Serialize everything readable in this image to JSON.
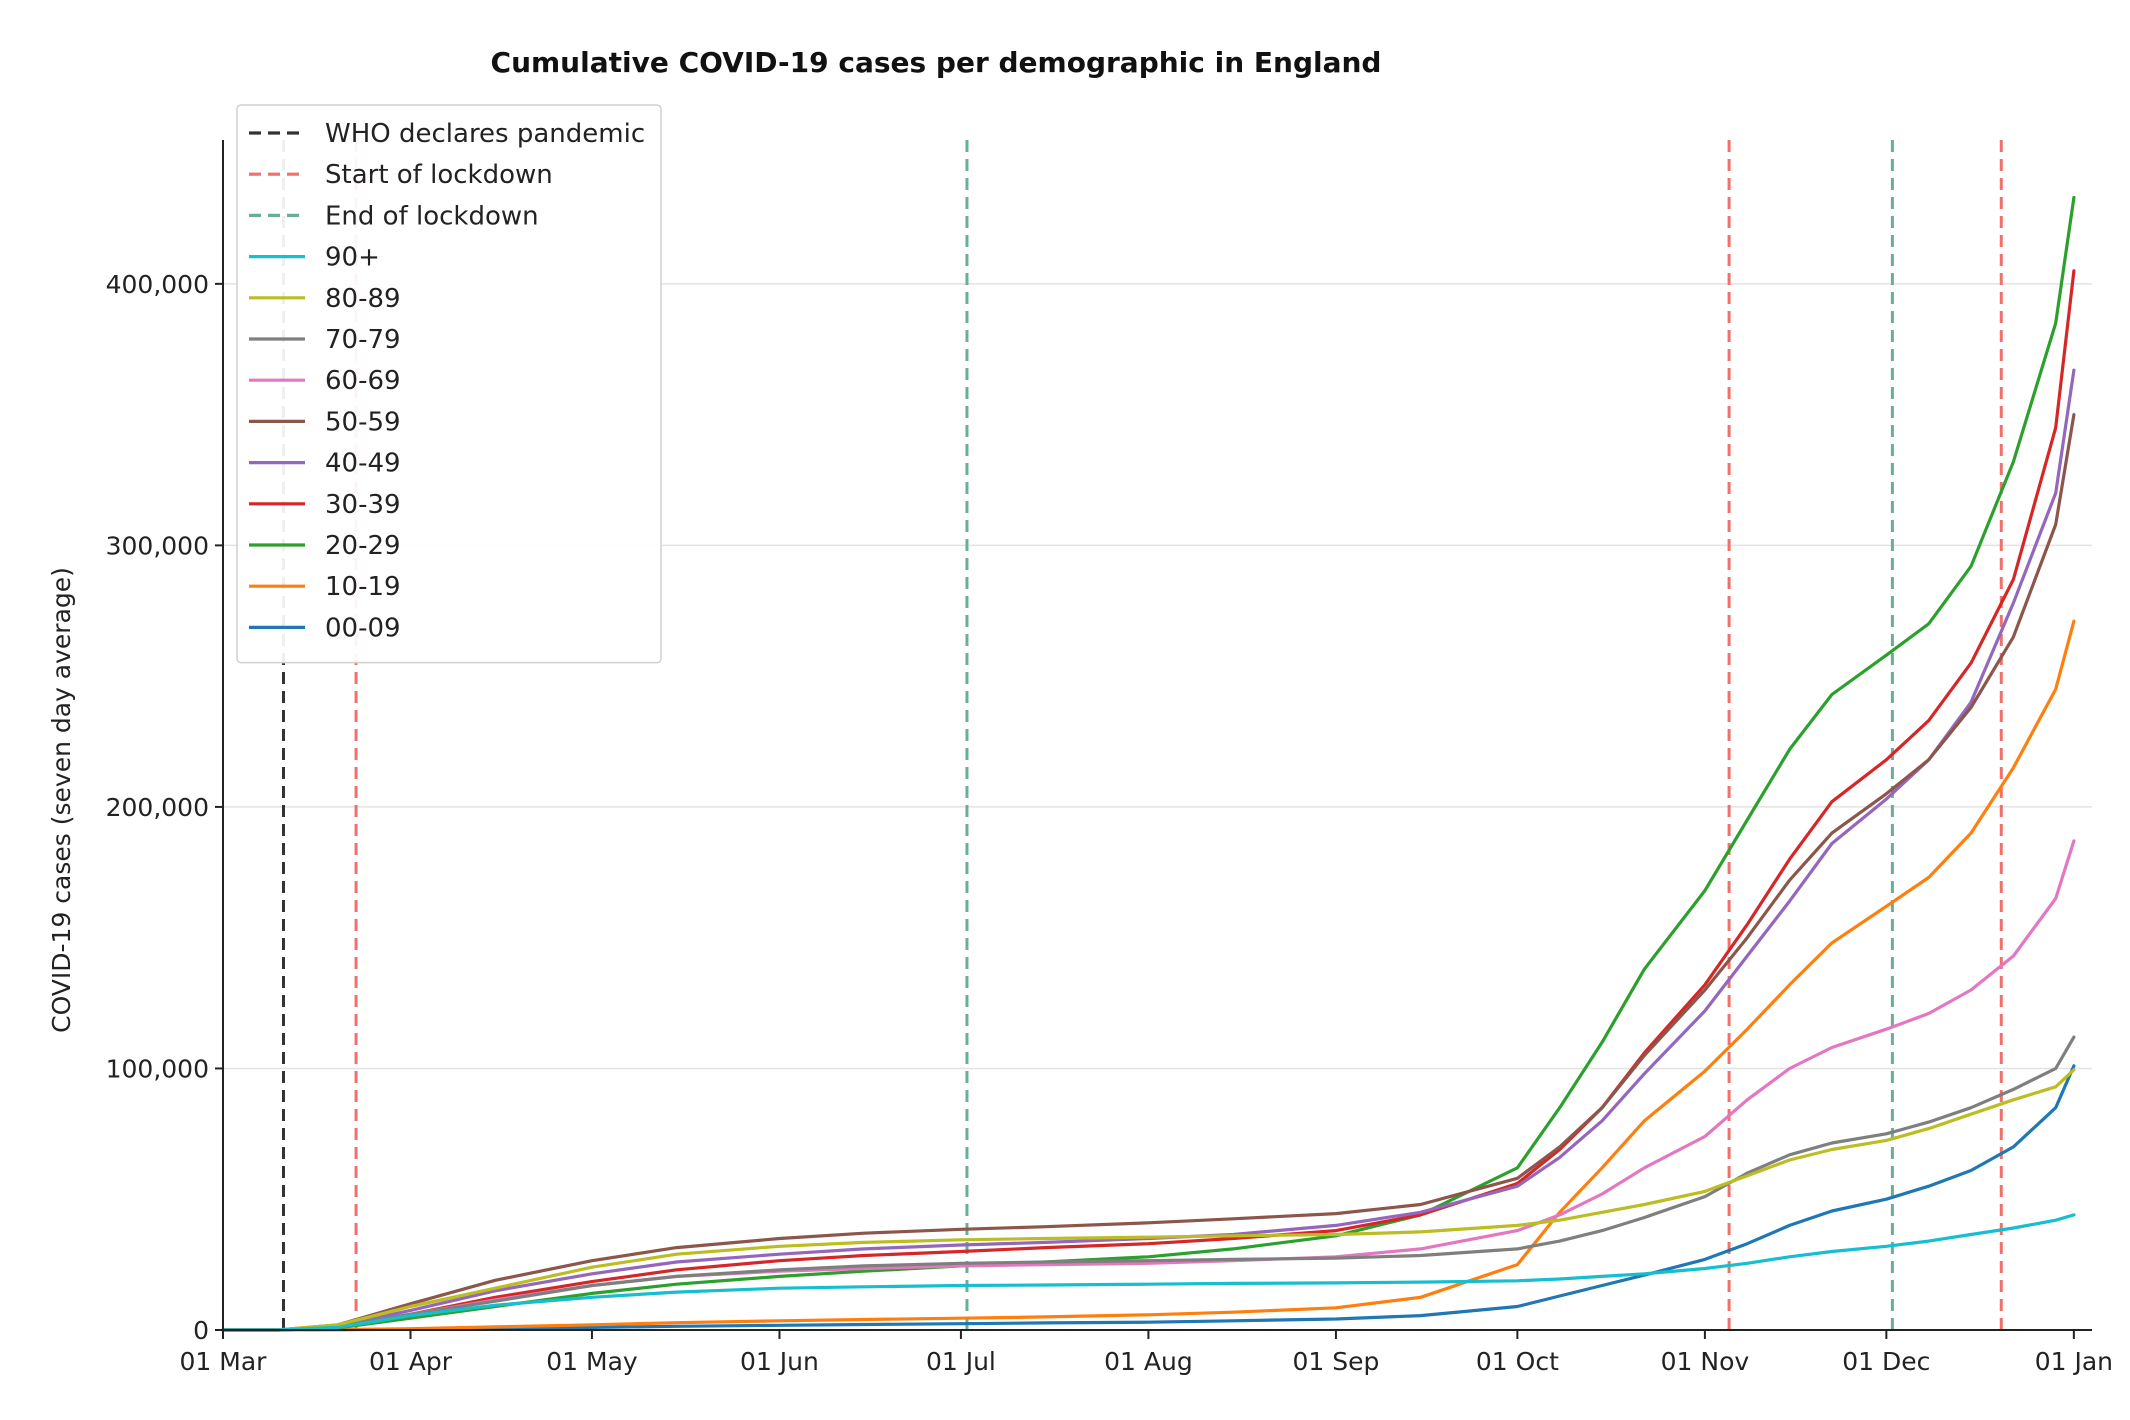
{
  "chart_data": {
    "type": "line",
    "title": "Cumulative COVID-19 cases per demographic in England",
    "xlabel": "",
    "ylabel": "COVID-19 cases (seven day average)",
    "x_range": [
      "2020-03-01",
      "2021-01-04"
    ],
    "ylim": [
      0,
      455000
    ],
    "y_ticks": [
      0,
      100000,
      200000,
      300000,
      400000
    ],
    "y_tick_labels": [
      "0",
      "100,000",
      "200,000",
      "300,000",
      "400,000"
    ],
    "x_ticks": [
      "2020-03-01",
      "2020-04-01",
      "2020-05-01",
      "2020-06-01",
      "2020-07-01",
      "2020-08-01",
      "2020-09-01",
      "2020-10-01",
      "2020-11-01",
      "2020-12-01",
      "2021-01-01"
    ],
    "x_tick_labels": [
      "01 Mar",
      "01 Apr",
      "01 May",
      "01 Jun",
      "01 Jul",
      "01 Aug",
      "01 Sep",
      "01 Oct",
      "01 Nov",
      "01 Dec",
      "01 Jan"
    ],
    "grid": "horizontal",
    "legend_position": "top-left",
    "events": [
      {
        "name": "WHO declares pandemic",
        "date": "2020-03-11",
        "color": "#333333"
      },
      {
        "name": "Start of lockdown",
        "date": "2020-03-23",
        "color": "#f0706b"
      },
      {
        "name": "End of lockdown",
        "date": "2020-07-02",
        "color": "#6aae95"
      },
      {
        "name": "Start of lockdown",
        "date": "2020-11-05",
        "color": "#f0706b"
      },
      {
        "name": "End of lockdown",
        "date": "2020-12-02",
        "color": "#6aae95"
      },
      {
        "name": "Start of lockdown",
        "date": "2020-12-20",
        "color": "#f0706b"
      }
    ],
    "legend": [
      {
        "name": "WHO declares pandemic",
        "color": "#333333",
        "style": "dashed"
      },
      {
        "name": "Start of lockdown",
        "color": "#f0706b",
        "style": "dashed"
      },
      {
        "name": "End of lockdown",
        "color": "#6aae95",
        "style": "dashed"
      },
      {
        "name": "90+",
        "color": "#17becf",
        "style": "solid"
      },
      {
        "name": "80-89",
        "color": "#bcbd22",
        "style": "solid"
      },
      {
        "name": "70-79",
        "color": "#7f7f7f",
        "style": "solid"
      },
      {
        "name": "60-69",
        "color": "#e377c2",
        "style": "solid"
      },
      {
        "name": "50-59",
        "color": "#8c564b",
        "style": "solid"
      },
      {
        "name": "40-49",
        "color": "#9467bd",
        "style": "solid"
      },
      {
        "name": "30-39",
        "color": "#d62728",
        "style": "solid"
      },
      {
        "name": "20-29",
        "color": "#2ca02c",
        "style": "solid"
      },
      {
        "name": "10-19",
        "color": "#ff7f0e",
        "style": "solid"
      },
      {
        "name": "00-09",
        "color": "#1f77b4",
        "style": "solid"
      }
    ],
    "x": [
      "2020-03-01",
      "2020-03-10",
      "2020-03-20",
      "2020-04-01",
      "2020-04-15",
      "2020-05-01",
      "2020-05-15",
      "2020-06-01",
      "2020-06-15",
      "2020-07-01",
      "2020-07-15",
      "2020-08-01",
      "2020-08-15",
      "2020-09-01",
      "2020-09-15",
      "2020-10-01",
      "2020-10-08",
      "2020-10-15",
      "2020-10-22",
      "2020-11-01",
      "2020-11-08",
      "2020-11-15",
      "2020-11-22",
      "2020-12-01",
      "2020-12-08",
      "2020-12-15",
      "2020-12-22",
      "2020-12-29",
      "2021-01-01"
    ],
    "series": [
      {
        "name": "90+",
        "color": "#17becf",
        "values": [
          0,
          0,
          1000,
          5500,
          9500,
          12500,
          14500,
          16000,
          16500,
          17000,
          17200,
          17500,
          17800,
          18000,
          18300,
          18800,
          19500,
          20500,
          21500,
          23500,
          25500,
          28000,
          30000,
          32000,
          34000,
          36500,
          39000,
          42000,
          44000
        ]
      },
      {
        "name": "80-89",
        "color": "#bcbd22",
        "values": [
          0,
          0,
          2000,
          9000,
          16000,
          24000,
          29000,
          32000,
          33500,
          34500,
          35000,
          35500,
          36000,
          36500,
          37500,
          40000,
          42000,
          45000,
          48000,
          53000,
          59000,
          65000,
          69000,
          72500,
          77000,
          82500,
          88000,
          93000,
          99500
        ]
      },
      {
        "name": "70-79",
        "color": "#7f7f7f",
        "values": [
          0,
          0,
          1500,
          6000,
          11000,
          17000,
          20500,
          23000,
          24500,
          25500,
          26000,
          26500,
          27000,
          27500,
          28500,
          31000,
          34000,
          38000,
          43000,
          51000,
          60000,
          67000,
          71500,
          75000,
          79500,
          85000,
          92000,
          100000,
          112000
        ]
      },
      {
        "name": "60-69",
        "color": "#e377c2",
        "values": [
          0,
          0,
          1200,
          6000,
          11500,
          17000,
          20500,
          22500,
          23500,
          24500,
          25000,
          25500,
          26500,
          28000,
          31000,
          38000,
          44000,
          52000,
          62000,
          74000,
          88000,
          100000,
          108000,
          115000,
          121000,
          130000,
          143000,
          165000,
          187000
        ]
      },
      {
        "name": "50-59",
        "color": "#8c564b",
        "values": [
          0,
          0,
          2000,
          10000,
          19000,
          26500,
          31500,
          35000,
          37000,
          38500,
          39500,
          41000,
          42500,
          44500,
          48000,
          58000,
          70000,
          85000,
          105000,
          130000,
          150000,
          172000,
          190000,
          205000,
          218000,
          238000,
          265000,
          308000,
          350000
        ]
      },
      {
        "name": "40-49",
        "color": "#9467bd",
        "values": [
          0,
          0,
          1500,
          7500,
          15000,
          21500,
          26000,
          29000,
          31000,
          32500,
          33500,
          35000,
          36500,
          40000,
          45000,
          55000,
          66000,
          80000,
          98000,
          122000,
          143000,
          164000,
          186000,
          203000,
          218000,
          240000,
          278000,
          320000,
          367000
        ]
      },
      {
        "name": "30-39",
        "color": "#d62728",
        "values": [
          0,
          0,
          1200,
          6000,
          12500,
          18500,
          23000,
          26500,
          28500,
          30000,
          31500,
          33000,
          35000,
          38000,
          44000,
          56000,
          69000,
          85000,
          106000,
          132000,
          155000,
          180000,
          202000,
          218000,
          233000,
          255000,
          287000,
          345000,
          405000
        ]
      },
      {
        "name": "20-29",
        "color": "#2ca02c",
        "values": [
          0,
          0,
          800,
          4500,
          9000,
          14000,
          17500,
          20500,
          22500,
          24500,
          26000,
          28000,
          31000,
          36000,
          44000,
          62000,
          85000,
          110000,
          138000,
          168000,
          195000,
          222000,
          243000,
          258000,
          270000,
          292000,
          332000,
          385000,
          433000
        ]
      },
      {
        "name": "10-19",
        "color": "#ff7f0e",
        "values": [
          0,
          0,
          100,
          500,
          1200,
          2000,
          2800,
          3500,
          4000,
          4500,
          5000,
          5800,
          6800,
          8500,
          12500,
          25000,
          45000,
          62000,
          80000,
          99000,
          115000,
          132000,
          148000,
          162000,
          173000,
          190000,
          215000,
          245000,
          271000
        ]
      },
      {
        "name": "00-09",
        "color": "#1f77b4",
        "values": [
          0,
          0,
          100,
          300,
          600,
          1000,
          1400,
          1800,
          2100,
          2400,
          2700,
          3000,
          3500,
          4200,
          5500,
          9000,
          13000,
          17000,
          21000,
          27000,
          33000,
          40000,
          45500,
          50000,
          55000,
          61000,
          70000,
          85000,
          101000
        ]
      }
    ]
  }
}
